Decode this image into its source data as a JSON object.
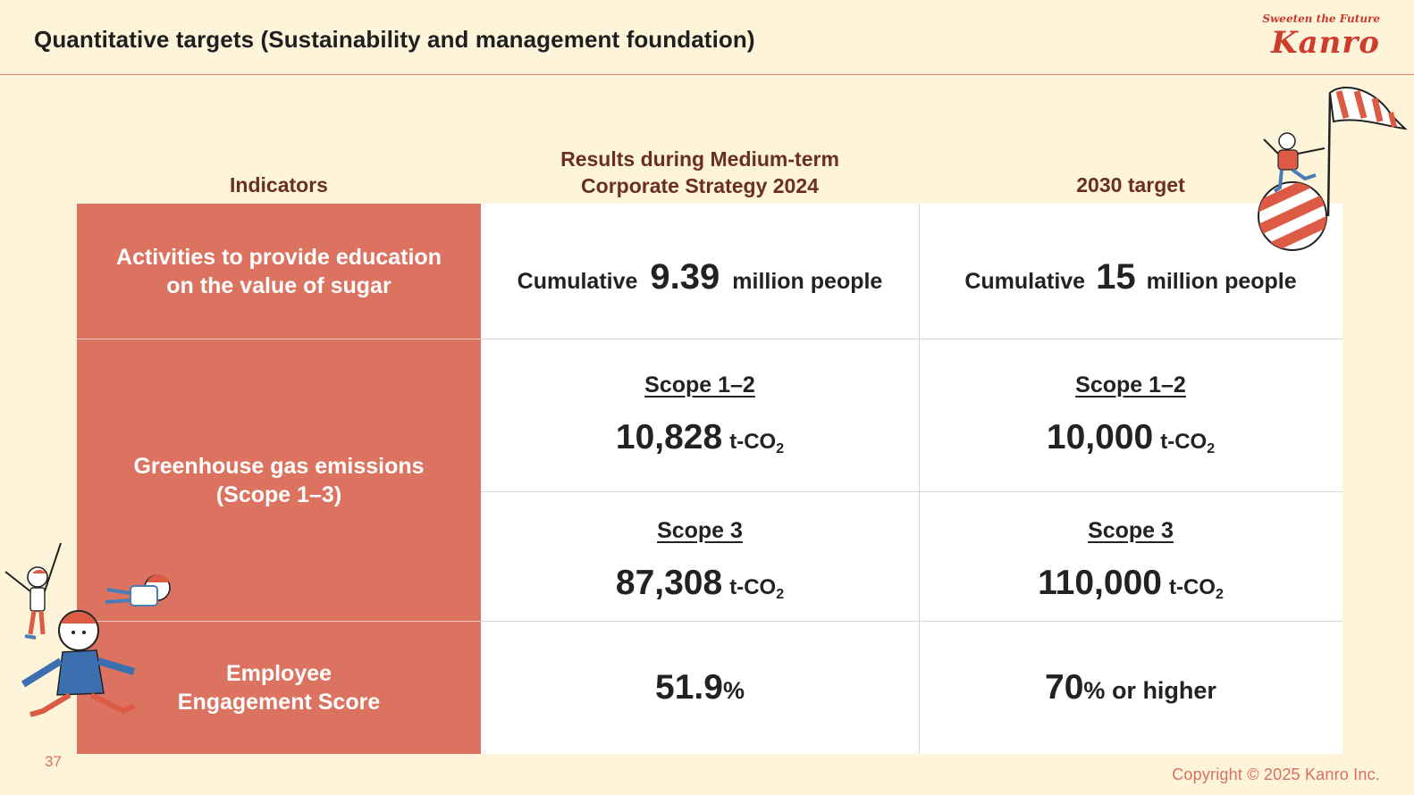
{
  "header": {
    "title": "Quantitative targets (Sustainability and management foundation)",
    "logo_tagline": "Sweeten the Future",
    "logo_name": "Kanro"
  },
  "columns": {
    "indicators": "Indicators",
    "results_line1": "Results during Medium-term",
    "results_line2": "Corporate Strategy 2024",
    "target": "2030 target"
  },
  "rows": {
    "education": {
      "indicator_line1": "Activities to provide education",
      "indicator_line2": "on the value of sugar",
      "result": {
        "prefix": "Cumulative",
        "value": "9.39",
        "suffix": "million people"
      },
      "target": {
        "prefix": "Cumulative",
        "value": "15",
        "suffix": "million people"
      }
    },
    "ghg": {
      "indicator_line1": "Greenhouse gas emissions",
      "indicator_line2": "(Scope 1–3)",
      "scope12": {
        "label": "Scope 1–2",
        "result_value": "10,828",
        "target_value": "10,000"
      },
      "scope3": {
        "label": "Scope 3",
        "result_value": "87,308",
        "target_value": "110,000"
      },
      "unit_main": "t-CO",
      "unit_sub": "2"
    },
    "engagement": {
      "indicator_line1": "Employee",
      "indicator_line2": "Engagement Score",
      "result": {
        "value": "51.9",
        "unit": "%"
      },
      "target": {
        "value": "70",
        "unit": "%",
        "suffix": " or higher"
      }
    }
  },
  "footer": {
    "page_number": "37",
    "copyright": "Copyright © 2025  Kanro Inc."
  }
}
